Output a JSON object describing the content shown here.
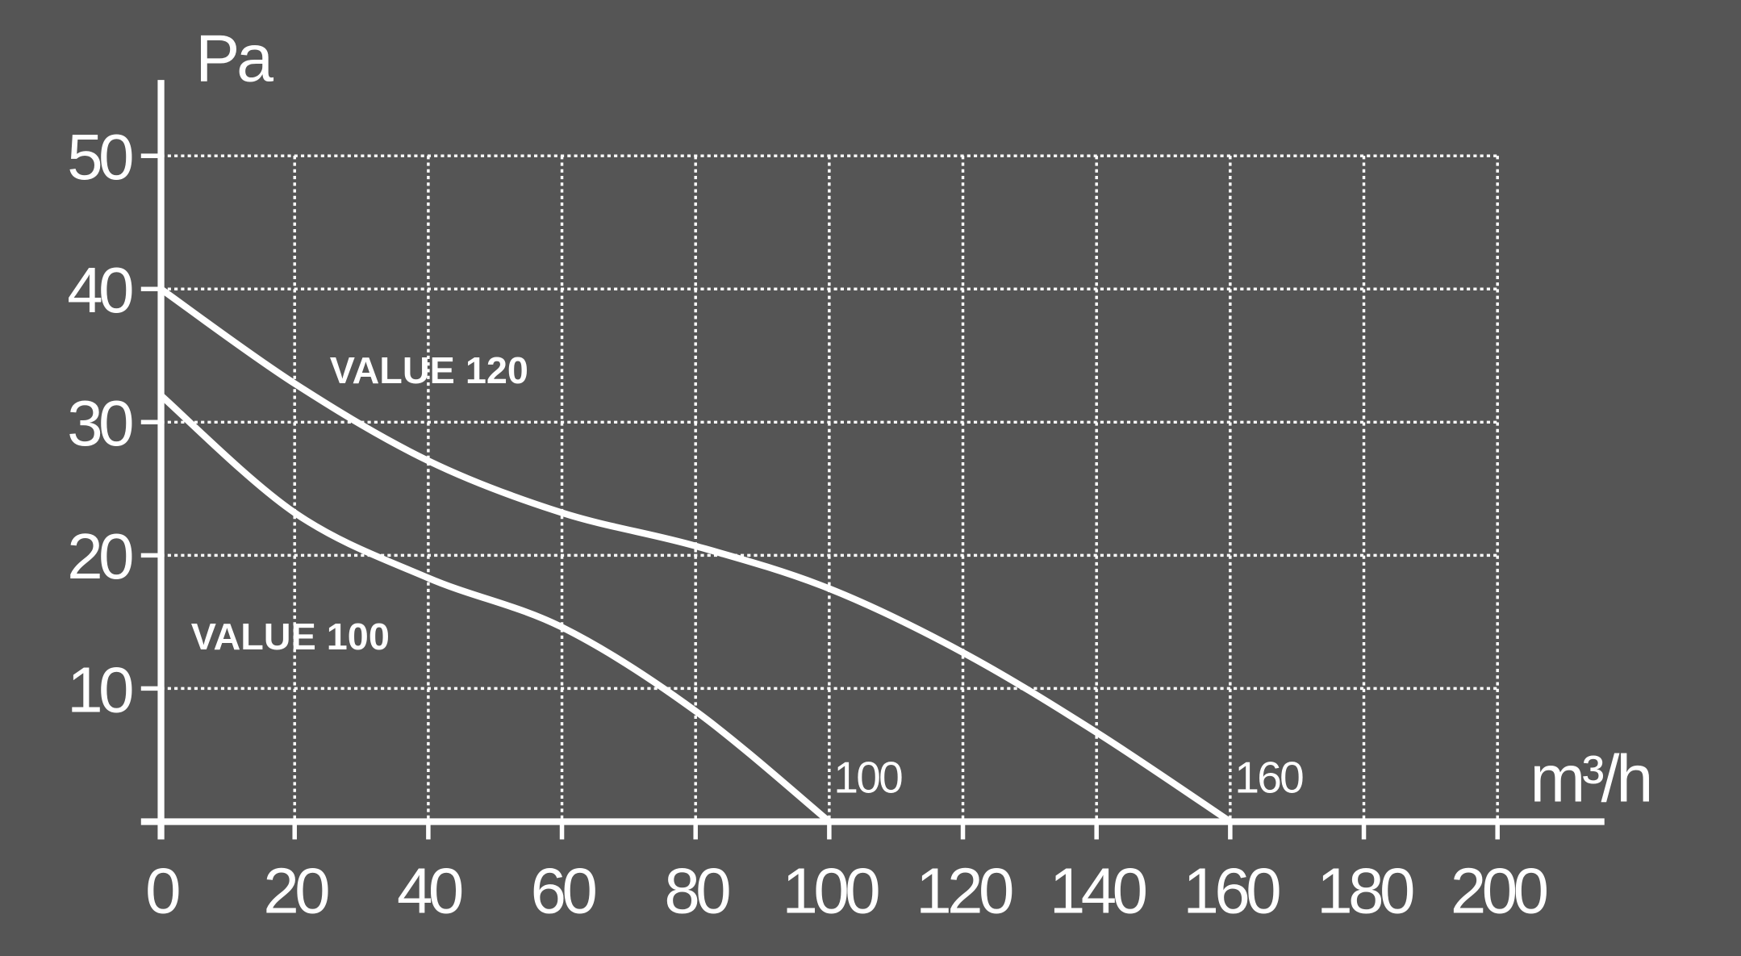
{
  "chart_data": {
    "type": "line",
    "y_label": "Pa",
    "x_label": "m³/h",
    "x": [
      0,
      20,
      40,
      60,
      80,
      100,
      120,
      140,
      160
    ],
    "series": [
      {
        "name": "VALUE 120",
        "color": "#ffffff",
        "values": [
          40,
          32.9,
          27.1,
          23.2,
          20.7,
          17.5,
          12.7,
          6.7,
          0
        ]
      },
      {
        "name": "VALUE 100",
        "color": "#ffffff",
        "values": [
          32,
          23.2,
          18.3,
          14.6,
          8.3,
          0,
          null,
          null,
          null
        ]
      }
    ],
    "annotations": [
      "160",
      "100"
    ],
    "xlim": [
      0,
      216
    ],
    "ylim": [
      0,
      55.7
    ],
    "xticks": [
      0,
      20,
      40,
      60,
      80,
      100,
      120,
      140,
      160,
      180,
      200
    ],
    "yticks": [
      10,
      20,
      30,
      40,
      50
    ],
    "grid": true
  }
}
